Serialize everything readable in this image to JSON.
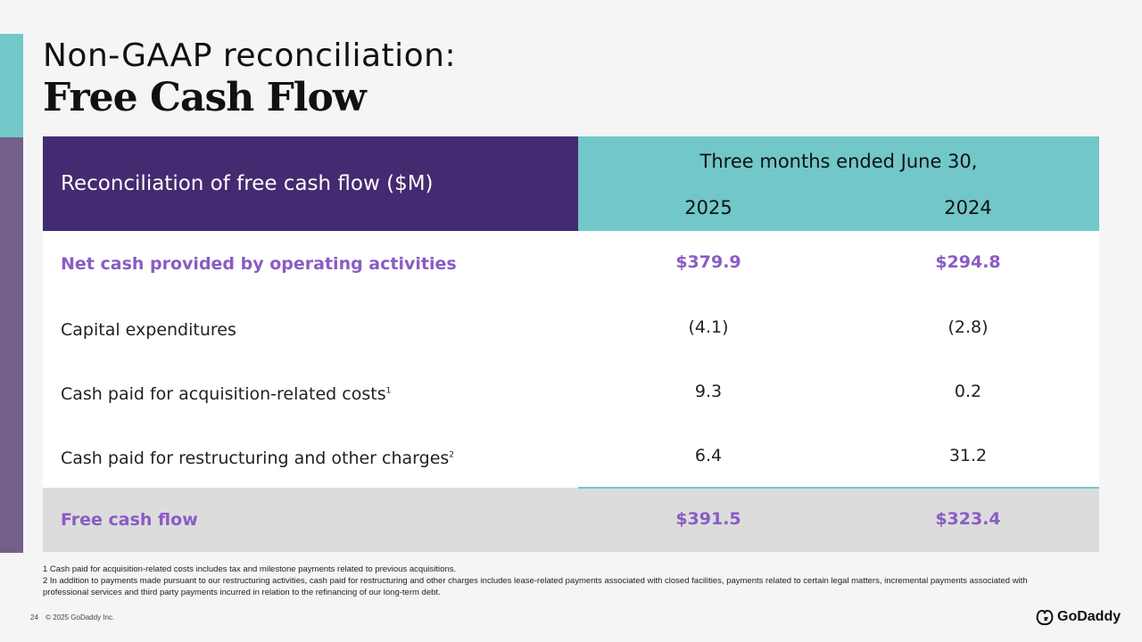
{
  "title": {
    "line1": "Non-GAAP reconciliation:",
    "line2": "Free Cash Flow"
  },
  "table": {
    "header_label": "Reconciliation of free cash flow ($M)",
    "period": "Three months ended June 30,",
    "years": [
      "2025",
      "2024"
    ],
    "rows": [
      {
        "label": "Net cash provided by operating activities",
        "sup": "",
        "v2025": "$379.9",
        "v2024": "$294.8"
      },
      {
        "label": "Capital expenditures",
        "sup": "",
        "v2025": "(4.1)",
        "v2024": "(2.8)"
      },
      {
        "label": "Cash paid for acquisition-related costs",
        "sup": "1",
        "v2025": "9.3",
        "v2024": "0.2"
      },
      {
        "label": "Cash paid for restructuring and other charges",
        "sup": "2",
        "v2025": "6.4",
        "v2024": "31.2"
      }
    ],
    "total": {
      "label": "Free cash flow",
      "v2025": "$391.5",
      "v2024": "$323.4"
    }
  },
  "footnotes": [
    "1 Cash paid for acquisition-related costs includes tax and milestone payments related to previous acquisitions.",
    "2 In addition to payments made pursuant to our restructuring activities, cash paid for restructuring and other charges includes lease-related payments associated with closed facilities, payments related to certain legal matters, incremental payments associated with professional services and third party payments incurred in relation to the refinancing of our long-term debt."
  ],
  "footer": {
    "page_number": "24",
    "copyright": "© 2025 GoDaddy Inc."
  },
  "logo": {
    "text": "GoDaddy",
    "icon": "godaddy-logo-icon"
  },
  "colors": {
    "header_purple": "#442a70",
    "header_teal": "#72c7c9",
    "highlight_purple": "#8a5cc4",
    "side_purple": "#735f8a",
    "total_gray": "#dcdcdc"
  }
}
